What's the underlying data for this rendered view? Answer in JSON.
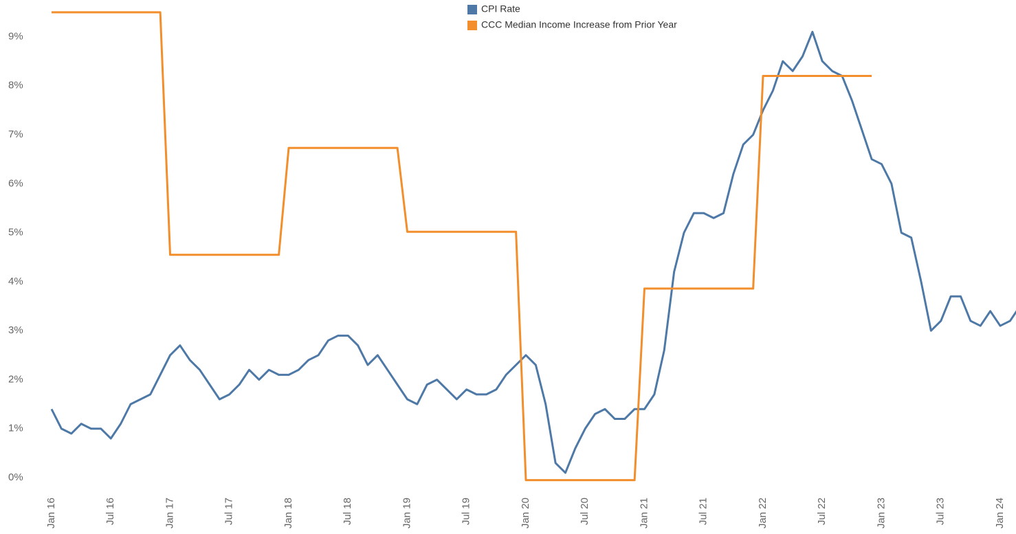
{
  "chart_data": {
    "type": "line",
    "categories": [
      "Jan 16",
      null,
      null,
      null,
      null,
      null,
      "Jul 16",
      null,
      null,
      null,
      null,
      null,
      "Jan 17",
      null,
      null,
      null,
      null,
      null,
      "Jul 17",
      null,
      null,
      null,
      null,
      null,
      "Jan 18",
      null,
      null,
      null,
      null,
      null,
      "Jul 18",
      null,
      null,
      null,
      null,
      null,
      "Jan 19",
      null,
      null,
      null,
      null,
      null,
      "Jul 19",
      null,
      null,
      null,
      null,
      null,
      "Jan 20",
      null,
      null,
      null,
      null,
      null,
      "Jul 20",
      null,
      null,
      null,
      null,
      null,
      "Jan 21",
      null,
      null,
      null,
      null,
      null,
      "Jul 21",
      null,
      null,
      null,
      null,
      null,
      "Jan 22",
      null,
      null,
      null,
      null,
      null,
      "Jul 22",
      null,
      null,
      null,
      null,
      null,
      "Jan 23",
      null,
      null,
      null,
      null,
      null,
      "Jul 23",
      null,
      null,
      null,
      null,
      null,
      "Jan 24",
      null,
      null
    ],
    "series": [
      {
        "name": "CPI Rate",
        "color": "#4e79a7",
        "values": [
          1.4,
          1.0,
          0.9,
          1.1,
          1.0,
          1.0,
          0.8,
          1.1,
          1.5,
          1.6,
          1.7,
          2.1,
          2.5,
          2.7,
          2.4,
          2.2,
          1.9,
          1.6,
          1.7,
          1.9,
          2.2,
          2.0,
          2.2,
          2.1,
          2.1,
          2.2,
          2.4,
          2.5,
          2.8,
          2.9,
          2.9,
          2.7,
          2.3,
          2.5,
          2.2,
          1.9,
          1.6,
          1.5,
          1.9,
          2.0,
          1.8,
          1.6,
          1.8,
          1.7,
          1.7,
          1.8,
          2.1,
          2.3,
          2.5,
          2.3,
          1.5,
          0.3,
          0.1,
          0.6,
          1.0,
          1.3,
          1.4,
          1.2,
          1.2,
          1.4,
          1.4,
          1.7,
          2.6,
          4.2,
          5.0,
          5.4,
          5.4,
          5.3,
          5.4,
          6.2,
          6.8,
          7.0,
          7.5,
          7.9,
          8.5,
          8.3,
          8.6,
          9.1,
          8.5,
          8.3,
          8.2,
          7.7,
          7.1,
          6.5,
          6.4,
          6.0,
          5.0,
          4.9,
          4.0,
          3.0,
          3.2,
          3.7,
          3.7,
          3.2,
          3.1,
          3.4,
          3.1,
          3.2,
          3.5
        ]
      },
      {
        "name": "CCC Median Income Increase from Prior Year",
        "color": "#f28e2b",
        "values": [
          9.5,
          9.5,
          9.5,
          9.5,
          9.5,
          9.5,
          9.5,
          9.5,
          9.5,
          9.5,
          9.5,
          9.5,
          4.55,
          4.55,
          4.55,
          4.55,
          4.55,
          4.55,
          4.55,
          4.55,
          4.55,
          4.55,
          4.55,
          4.55,
          6.73,
          6.73,
          6.73,
          6.73,
          6.73,
          6.73,
          6.73,
          6.73,
          6.73,
          6.73,
          6.73,
          6.73,
          5.02,
          5.02,
          5.02,
          5.02,
          5.02,
          5.02,
          5.02,
          5.02,
          5.02,
          5.02,
          5.02,
          5.02,
          -0.05,
          -0.05,
          -0.05,
          -0.05,
          -0.05,
          -0.05,
          -0.05,
          -0.05,
          -0.05,
          -0.05,
          -0.05,
          -0.05,
          3.86,
          3.86,
          3.86,
          3.86,
          3.86,
          3.86,
          3.86,
          3.86,
          3.86,
          3.86,
          3.86,
          3.86,
          8.2,
          8.2,
          8.2,
          8.2,
          8.2,
          8.2,
          8.2,
          8.2,
          8.2,
          8.2,
          8.2,
          8.2,
          null,
          null,
          null,
          null,
          null,
          null,
          null,
          null,
          null,
          null,
          null,
          null,
          null,
          null,
          null
        ]
      }
    ],
    "ylim": [
      -0.35,
      9.75
    ],
    "yticks": [
      {
        "value": 0,
        "label": "0%"
      },
      {
        "value": 1,
        "label": "1%"
      },
      {
        "value": 2,
        "label": "2%"
      },
      {
        "value": 3,
        "label": "3%"
      },
      {
        "value": 4,
        "label": "4%"
      },
      {
        "value": 5,
        "label": "5%"
      },
      {
        "value": 6,
        "label": "6%"
      },
      {
        "value": 7,
        "label": "7%"
      },
      {
        "value": 8,
        "label": "8%"
      },
      {
        "value": 9,
        "label": "9%"
      }
    ],
    "grid": false
  }
}
